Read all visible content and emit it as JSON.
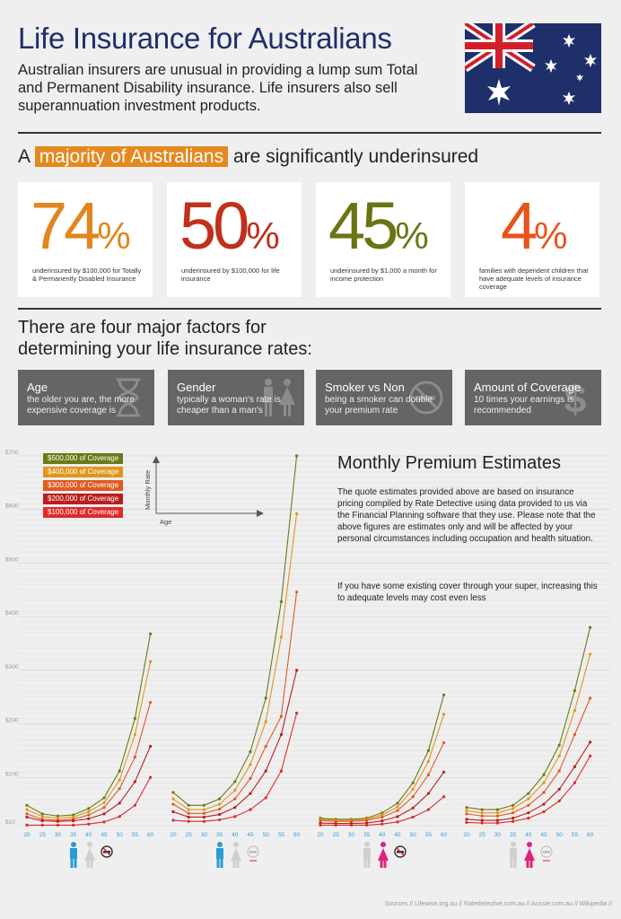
{
  "header": {
    "title": "Life Insurance for Australians",
    "intro": "Australian insurers are unusual in providing a lump sum Total and Permanent Disability insurance. Life insurers also sell superannuation investment products."
  },
  "majority": {
    "prefix": "A ",
    "highlight": "majority of Australians",
    "suffix": " are significantly underinsured"
  },
  "stats": [
    {
      "value": "74",
      "unit": "%",
      "color": "#e0861c",
      "desc": "underinsured by $100,000 for Totally & Permanently Disabled Insurance"
    },
    {
      "value": "50",
      "unit": "%",
      "color": "#c0301a",
      "desc": "underinsured by $100,000 for life insurance"
    },
    {
      "value": "45",
      "unit": "%",
      "color": "#6b7412",
      "desc": "underinsured by $1,000 a month for income protection"
    },
    {
      "value": "4",
      "unit": "%",
      "color": "#e8541c",
      "desc": "families with dependent children that have adequate levels of insurance coverage"
    }
  ],
  "factors_heading": "There are four major factors for determining your life insurance rates:",
  "factors": [
    {
      "title": "Age",
      "desc": "the older you are, the more expensive coverage is",
      "icon": "hourglass-icon"
    },
    {
      "title": "Gender",
      "desc": "typically a woman's rate is cheaper than a man's",
      "icon": "gender-icon"
    },
    {
      "title": "Smoker vs Non",
      "desc": "being a smoker can double your premium rate",
      "icon": "no-smoking-icon"
    },
    {
      "title": "Amount of Coverage",
      "desc": "10 times your earnings is recommended",
      "icon": "dollar-icon"
    }
  ],
  "premium": {
    "title": "Monthly Premium Estimates",
    "text1": "The quote estimates provided above are based on insurance pricing compiled by Rate Detective using data provided to us via the Financial Planning software that they use. Please note that the above figures are estimates only and will be affected by your personal circumstances including occupation and health situation.",
    "text2": "If you have some existing cover through your super, increasing this to adequate levels may cost even less"
  },
  "axis_guide": {
    "y": "Monthly Rate",
    "x": "Age"
  },
  "sources": "Sources // Lifewise.org.au // Ratedetective.com.au // Aussie.com.au // Wikipedia //",
  "chart_data": {
    "type": "line",
    "ylim": [
      10,
      700
    ],
    "yticks": [
      "$10",
      "$100",
      "$200",
      "$300",
      "$400",
      "$500",
      "$600",
      "$700"
    ],
    "ytick_values": [
      10,
      100,
      200,
      300,
      400,
      500,
      600,
      700
    ],
    "x": [
      20,
      25,
      30,
      35,
      40,
      45,
      50,
      55,
      60
    ],
    "legend": [
      {
        "name": "$500,000 of Coverage",
        "color": "#6b7a16"
      },
      {
        "name": "$400,000 of Coverage",
        "color": "#e0961c"
      },
      {
        "name": "$300,000 of Coverage",
        "color": "#e05a22"
      },
      {
        "name": "$200,000 of Coverage",
        "color": "#b81e1e"
      },
      {
        "name": "$100,000 of Coverage",
        "color": "#e02a2a"
      }
    ],
    "panels": [
      {
        "gender": "male",
        "smoker": true,
        "series": [
          {
            "name": "$500,000 of Coverage",
            "values": [
              48,
              32,
              28,
              30,
              42,
              62,
              112,
              210,
              368
            ]
          },
          {
            "name": "$400,000 of Coverage",
            "values": [
              40,
              27,
              24,
              26,
              36,
              53,
              95,
              180,
              316
            ]
          },
          {
            "name": "$300,000 of Coverage",
            "values": [
              32,
              22,
              20,
              22,
              30,
              44,
              79,
              138,
              240
            ]
          },
          {
            "name": "$200,000 of Coverage",
            "values": [
              26,
              19,
              18,
              19,
              23,
              32,
              52,
              92,
              158
            ]
          },
          {
            "name": "$100,000 of Coverage",
            "values": [
              11,
              11,
              11,
              11,
              13,
              17,
              27,
              48,
              100
            ]
          }
        ]
      },
      {
        "gender": "male",
        "smoker": false,
        "series": [
          {
            "name": "$500,000 of Coverage",
            "values": [
              72,
              48,
              48,
              60,
              92,
              148,
              248,
              428,
              700
            ]
          },
          {
            "name": "$400,000 of Coverage",
            "values": [
              60,
              40,
              40,
              50,
              76,
              124,
              204,
              362,
              592
            ]
          },
          {
            "name": "$300,000 of Coverage",
            "values": [
              50,
              33,
              33,
              41,
              60,
              98,
              158,
              214,
              446
            ]
          },
          {
            "name": "$200,000 of Coverage",
            "values": [
              36,
              26,
              26,
              31,
              44,
              70,
              112,
              180,
              300
            ]
          },
          {
            "name": "$100,000 of Coverage",
            "values": [
              20,
              18,
              18,
              21,
              27,
              40,
              62,
              112,
              220
            ]
          }
        ]
      },
      {
        "gender": "female",
        "smoker": true,
        "series": [
          {
            "name": "$500,000 of Coverage",
            "values": [
              24,
              22,
              22,
              24,
              34,
              52,
              90,
              150,
              254
            ]
          },
          {
            "name": "$400,000 of Coverage",
            "values": [
              22,
              20,
              20,
              22,
              30,
              45,
              78,
              130,
              218
            ]
          },
          {
            "name": "$300,000 of Coverage",
            "values": [
              20,
              18,
              18,
              20,
              26,
              38,
              64,
              105,
              165
            ]
          },
          {
            "name": "$200,000 of Coverage",
            "values": [
              15,
              14,
              14,
              15,
              19,
              27,
              43,
              70,
              110
            ]
          },
          {
            "name": "$100,000 of Coverage",
            "values": [
              11,
              11,
              11,
              11,
              13,
              17,
              26,
              40,
              64
            ]
          }
        ]
      },
      {
        "gender": "female",
        "smoker": false,
        "series": [
          {
            "name": "$500,000 of Coverage",
            "values": [
              44,
              40,
              40,
              48,
              70,
              105,
              160,
              262,
              380
            ]
          },
          {
            "name": "$400,000 of Coverage",
            "values": [
              38,
              34,
              34,
              42,
              60,
              90,
              140,
              225,
              330
            ]
          },
          {
            "name": "$300,000 of Coverage",
            "values": [
              32,
              28,
              28,
              34,
              48,
              72,
              112,
              180,
              248
            ]
          },
          {
            "name": "$200,000 of Coverage",
            "values": [
              22,
              20,
              20,
              24,
              34,
              50,
              78,
              120,
              166
            ]
          },
          {
            "name": "$100,000 of Coverage",
            "values": [
              16,
              15,
              15,
              18,
              24,
              36,
              56,
              90,
              140
            ]
          }
        ]
      }
    ]
  }
}
